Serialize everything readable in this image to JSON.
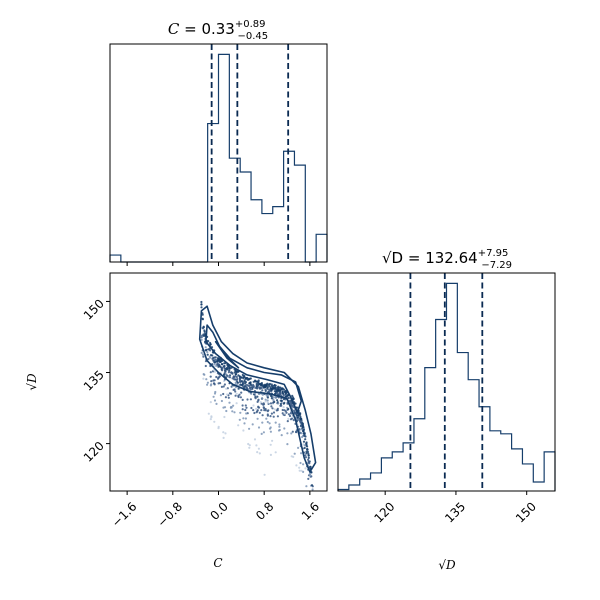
{
  "colors": {
    "main": "#163e6b",
    "quantile": "#0a2a52",
    "fill_light": "#c3d0e0",
    "fill_mid": "#7f97b6",
    "fill_dark": "#3b5b86"
  },
  "chart_data": {
    "type": "corner",
    "parameters": [
      {
        "name": "C",
        "axis_label": "C",
        "title_prefix": "C = ",
        "title_value": "0.33",
        "title_plus": "+0.89",
        "title_minus": "−0.45",
        "range": [
          -1.9,
          1.9
        ],
        "ticks": [
          {
            "value": -1.6,
            "label": "−1.6"
          },
          {
            "value": -0.8,
            "label": "−0.8"
          },
          {
            "value": 0.0,
            "label": "0.0"
          },
          {
            "value": 0.8,
            "label": "0.8"
          },
          {
            "value": 1.6,
            "label": "1.6"
          }
        ],
        "quantiles": [
          -0.12,
          0.33,
          1.22
        ],
        "histogram": {
          "edges": [
            -1.9,
            -1.71,
            -1.52,
            -1.33,
            -1.14,
            -0.95,
            -0.76,
            -0.57,
            -0.38,
            -0.19,
            0.0,
            0.19,
            0.38,
            0.57,
            0.76,
            0.95,
            1.14,
            1.33,
            1.52,
            1.71,
            1.9
          ],
          "counts": [
            1,
            0,
            0,
            0,
            0,
            0,
            0,
            0,
            0,
            20,
            30,
            15,
            13,
            9,
            7,
            8,
            16,
            14,
            0,
            4
          ]
        }
      },
      {
        "name": "sqrtD",
        "axis_label": "√D",
        "title_prefix": "√D = ",
        "title_value": "132.64",
        "title_plus": "+7.95",
        "title_minus": "−7.29",
        "range": [
          110,
          156
        ],
        "ticks": [
          {
            "value": 120,
            "label": "120"
          },
          {
            "value": 135,
            "label": "135"
          },
          {
            "value": 150,
            "label": "150"
          }
        ],
        "quantiles": [
          125.35,
          132.64,
          140.59
        ],
        "histogram": {
          "edges": [
            110,
            112.3,
            114.6,
            116.9,
            119.2,
            121.5,
            123.8,
            126.1,
            128.4,
            130.7,
            133.0,
            135.3,
            137.6,
            139.9,
            142.2,
            144.5,
            146.8,
            149.1,
            151.4,
            153.7,
            156.0
          ],
          "counts": [
            0.5,
            2,
            4,
            6,
            11,
            13,
            16,
            24,
            41,
            57,
            69,
            46,
            37,
            28,
            20,
            19,
            14,
            9,
            3,
            13
          ]
        }
      }
    ],
    "joint": {
      "x_param": "C",
      "y_param": "sqrtD",
      "ridge": [
        [
          -0.3,
          150
        ],
        [
          -0.25,
          144
        ],
        [
          -0.1,
          140
        ],
        [
          0.05,
          138
        ],
        [
          0.25,
          136
        ],
        [
          0.5,
          134
        ],
        [
          0.8,
          133
        ],
        [
          1.1,
          132
        ],
        [
          1.3,
          130
        ],
        [
          1.45,
          126
        ],
        [
          1.55,
          120
        ],
        [
          1.62,
          115
        ],
        [
          1.66,
          112
        ]
      ],
      "density_ridge_width_sqrtD": 3.5,
      "contours": [
        [
          [
            -0.3,
            148
          ],
          [
            -0.33,
            142
          ],
          [
            -0.2,
            137.5
          ],
          [
            0.0,
            135
          ],
          [
            0.25,
            132.5
          ],
          [
            0.55,
            131
          ],
          [
            0.9,
            130.5
          ],
          [
            1.2,
            129.5
          ],
          [
            1.35,
            125
          ],
          [
            1.5,
            117
          ],
          [
            1.6,
            114
          ],
          [
            1.7,
            116
          ],
          [
            1.62,
            122
          ],
          [
            1.52,
            127
          ],
          [
            1.4,
            132
          ],
          [
            1.15,
            135
          ],
          [
            0.8,
            136
          ],
          [
            0.5,
            137
          ],
          [
            0.25,
            139
          ],
          [
            0.05,
            141.5
          ],
          [
            -0.1,
            145
          ],
          [
            -0.2,
            149
          ]
        ],
        [
          [
            -0.2,
            145
          ],
          [
            -0.22,
            141.5
          ],
          [
            -0.05,
            139
          ],
          [
            0.2,
            136.5
          ],
          [
            0.5,
            134.5
          ],
          [
            0.85,
            133.5
          ],
          [
            1.15,
            132.5
          ],
          [
            1.3,
            129
          ],
          [
            1.38,
            126.5
          ],
          [
            1.45,
            129
          ],
          [
            1.35,
            133
          ],
          [
            1.1,
            134.5
          ],
          [
            0.8,
            135
          ],
          [
            0.5,
            136
          ],
          [
            0.2,
            138
          ],
          [
            0.02,
            140.5
          ],
          [
            -0.1,
            143.5
          ]
        ],
        [
          [
            -0.05,
            141.5
          ],
          [
            0.15,
            138
          ],
          [
            0.35,
            136
          ],
          [
            0.2,
            137.8
          ],
          [
            0.05,
            140
          ]
        ]
      ]
    }
  }
}
